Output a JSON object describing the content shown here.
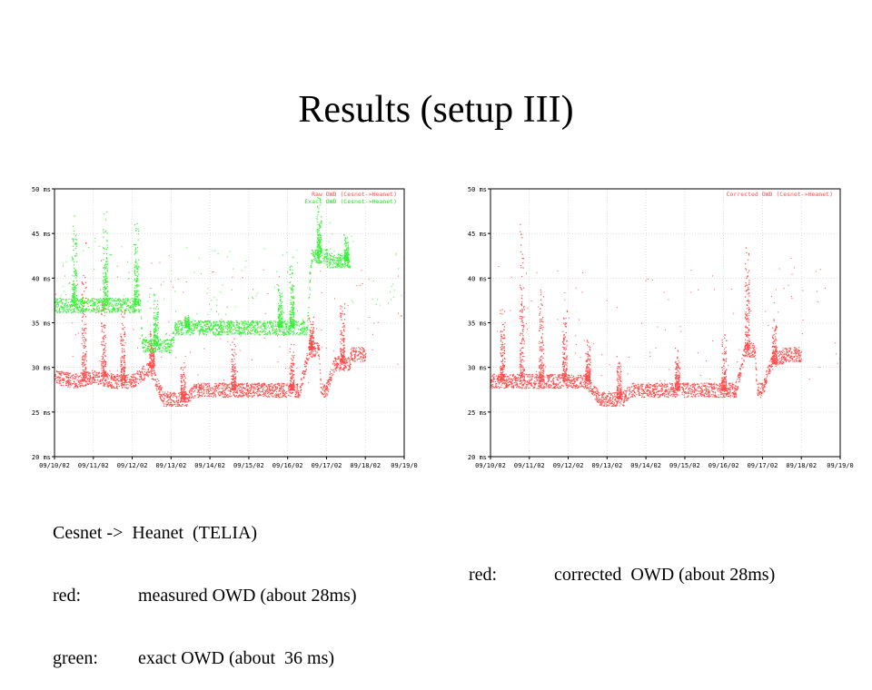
{
  "slide": {
    "title": "Results (setup III)"
  },
  "captions": {
    "left": {
      "line1": "Cesnet ->  Heanet  (TELIA)",
      "rows": [
        {
          "key": "red:",
          "value": "measured OWD (about 28ms)"
        },
        {
          "key": "green:",
          "value": "exact OWD (about  36 ms)"
        }
      ]
    },
    "right": {
      "rows": [
        {
          "key": "red:",
          "value": "corrected  OWD (about 28ms)"
        }
      ]
    }
  },
  "colors": {
    "red": "#ff4d4d",
    "green": "#39f039",
    "axis": "#000000",
    "grid": "#c8c8c8",
    "legend_red": "#ff4d4d",
    "legend_green": "#22dd22"
  },
  "chart_data": [
    {
      "type": "scatter",
      "ylim": [
        20,
        50
      ],
      "yticks": [
        "20 ms",
        "25 ms",
        "30 ms",
        "35 ms",
        "40 ms",
        "45 ms",
        "50 ms"
      ],
      "xticks": [
        "09/10/02",
        "09/11/02",
        "09/12/02",
        "09/13/02",
        "09/14/02",
        "09/15/02",
        "09/16/02",
        "09/17/02",
        "09/18/02",
        "09/19/0"
      ],
      "legend_position": "top-right",
      "grid": true,
      "series": [
        {
          "name": "Raw OWD (Cesnet->Heanet)",
          "color": "red",
          "baseline": [
            [
              0.0,
              29
            ],
            [
              0.5,
              28.5
            ],
            [
              1.0,
              29
            ],
            [
              1.5,
              28.5
            ],
            [
              2.0,
              28.5
            ],
            [
              2.45,
              30
            ],
            [
              2.8,
              26.5
            ],
            [
              3.4,
              26.5
            ],
            [
              3.6,
              27.5
            ],
            [
              5.0,
              27.5
            ],
            [
              6.3,
              27.5
            ],
            [
              6.55,
              32
            ],
            [
              6.8,
              32
            ],
            [
              6.85,
              27.5
            ],
            [
              7.0,
              27.5
            ],
            [
              7.2,
              30.5
            ],
            [
              7.6,
              30.5
            ],
            [
              7.62,
              31.5
            ],
            [
              8.0,
              31.5
            ]
          ],
          "spikes": [
            [
              0.75,
              45
            ],
            [
              1.25,
              43
            ],
            [
              1.75,
              38
            ],
            [
              2.5,
              35
            ],
            [
              3.3,
              31
            ],
            [
              4.6,
              34
            ],
            [
              6.1,
              33
            ],
            [
              6.6,
              36
            ],
            [
              7.4,
              38
            ]
          ]
        },
        {
          "name": "Exact OWD (Cesnet->Heanet)",
          "color": "green",
          "baseline": [
            [
              0.0,
              37
            ],
            [
              0.5,
              37
            ],
            [
              1.0,
              37
            ],
            [
              1.5,
              37
            ],
            [
              1.8,
              37
            ],
            [
              2.2,
              37
            ],
            [
              2.25,
              32.5
            ],
            [
              3.0,
              32.5
            ],
            [
              3.1,
              34.5
            ],
            [
              6.5,
              34.5
            ],
            [
              6.6,
              42.5
            ],
            [
              6.9,
              42.5
            ],
            [
              7.0,
              42.5
            ],
            [
              7.0,
              42
            ],
            [
              7.6,
              42
            ]
          ],
          "spikes": [
            [
              0.5,
              48
            ],
            [
              1.3,
              48
            ],
            [
              2.1,
              47
            ],
            [
              2.6,
              39
            ],
            [
              3.4,
              36
            ],
            [
              5.8,
              40
            ],
            [
              6.1,
              43
            ],
            [
              6.8,
              50
            ],
            [
              7.5,
              45
            ]
          ]
        }
      ]
    },
    {
      "type": "scatter",
      "ylim": [
        20,
        50
      ],
      "yticks": [
        "20 ms",
        "25 ms",
        "30 ms",
        "35 ms",
        "40 ms",
        "45 ms",
        "50 ms"
      ],
      "xticks": [
        "09/10/02",
        "09/11/02",
        "09/12/02",
        "09/13/02",
        "09/14/02",
        "09/15/02",
        "09/16/02",
        "09/17/02",
        "09/18/02",
        "09/19/0"
      ],
      "legend_position": "top-right",
      "grid": true,
      "series": [
        {
          "name": "Corrected OWD (Cesnet->Heanet)",
          "color": "red",
          "baseline": [
            [
              0.0,
              28.5
            ],
            [
              0.5,
              28.5
            ],
            [
              1.0,
              28.5
            ],
            [
              1.5,
              28.5
            ],
            [
              2.0,
              28.5
            ],
            [
              2.45,
              28.5
            ],
            [
              2.8,
              26.5
            ],
            [
              3.4,
              26.5
            ],
            [
              3.6,
              27.5
            ],
            [
              5.0,
              27.5
            ],
            [
              6.3,
              27.5
            ],
            [
              6.55,
              32
            ],
            [
              6.8,
              32
            ],
            [
              6.85,
              27.5
            ],
            [
              7.0,
              27.5
            ],
            [
              7.2,
              30.5
            ],
            [
              7.6,
              31.5
            ],
            [
              8.0,
              31.5
            ]
          ],
          "spikes": [
            [
              0.3,
              38
            ],
            [
              0.8,
              49
            ],
            [
              1.3,
              40
            ],
            [
              1.9,
              38
            ],
            [
              2.5,
              34
            ],
            [
              3.3,
              32
            ],
            [
              4.8,
              33
            ],
            [
              6.0,
              34
            ],
            [
              6.6,
              45
            ],
            [
              7.3,
              36
            ]
          ]
        }
      ]
    }
  ]
}
